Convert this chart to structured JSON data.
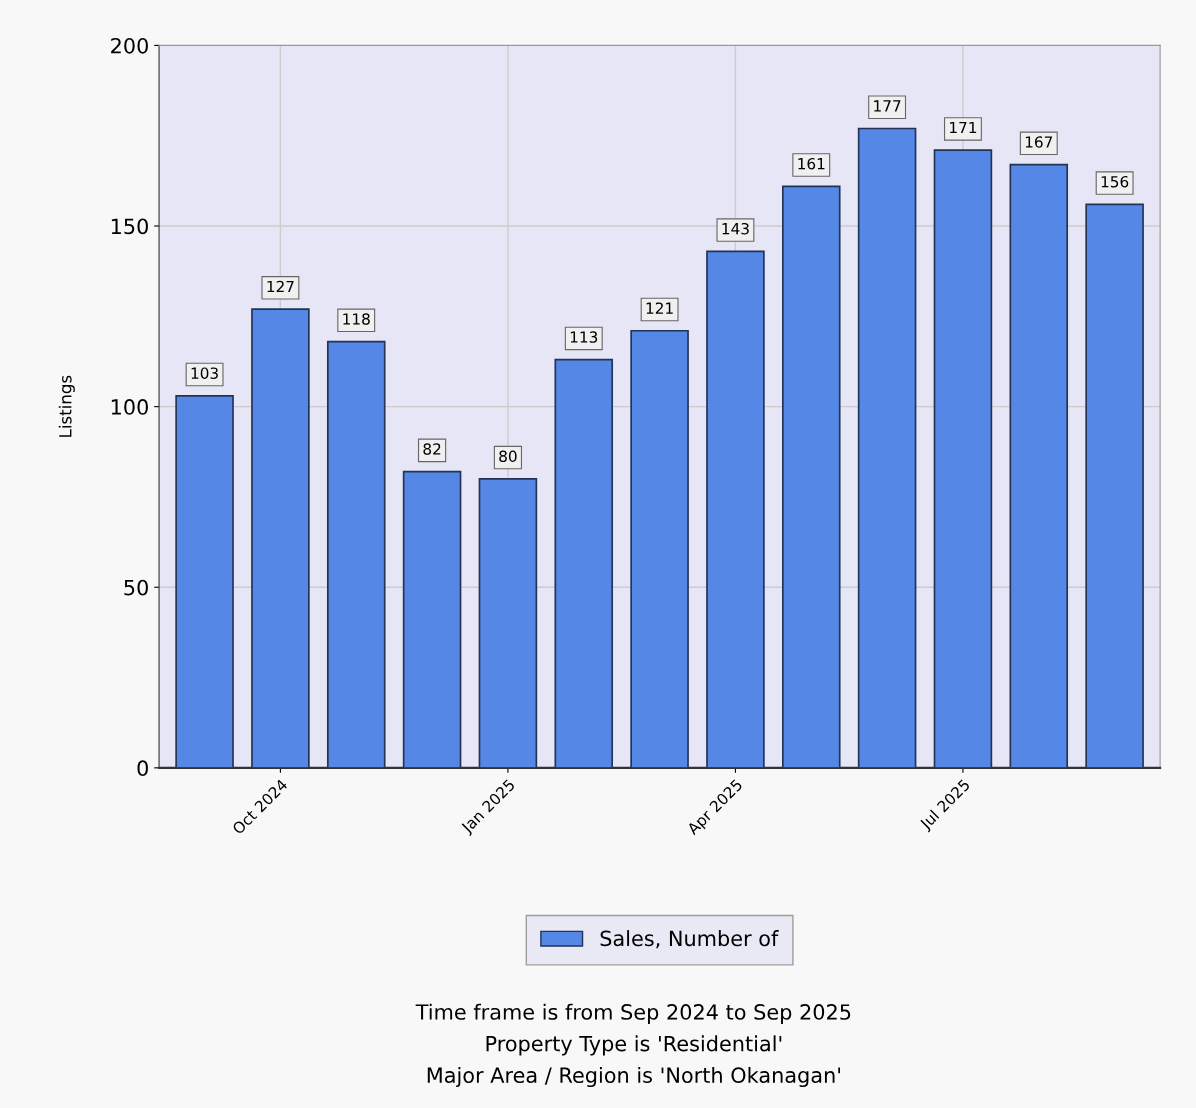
{
  "chart_data": {
    "type": "bar",
    "categories": [
      null,
      "Oct 2024",
      null,
      null,
      "Jan 2025",
      null,
      null,
      "Apr 2025",
      null,
      null,
      "Jul 2025",
      null,
      null
    ],
    "series": [
      {
        "name": "Sales, Number of",
        "color": "#5588e6",
        "values": [
          103,
          127,
          118,
          82,
          80,
          113,
          121,
          143,
          161,
          177,
          171,
          167,
          156
        ]
      }
    ],
    "ylabel": "Listings",
    "ylim": [
      0,
      200
    ],
    "yticks": [
      0,
      50,
      100,
      150,
      200
    ],
    "grid": true,
    "legend": "bottom",
    "data_labels": true,
    "annotations": [
      "Time frame is from Sep 2024 to Sep 2025",
      "Property Type is 'Residential'",
      "Major Area / Region is 'North Okanagan'"
    ]
  }
}
